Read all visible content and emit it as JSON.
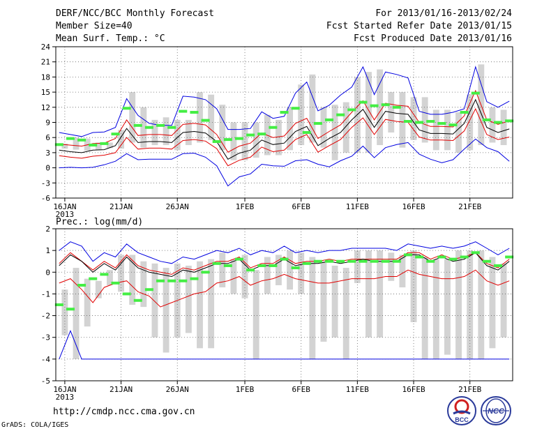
{
  "header": {
    "title": "DERF/NCC/BCC Monthly Forecast",
    "member_size": "Member Size=40",
    "variable": "Mean Surf. Temp.: °C",
    "for_range": "For 2013/01/16-2013/02/24",
    "fcst_started": "Fcst Started Refer Date 2013/01/15",
    "fcst_produced": "Fcst Produced Date 2013/01/16"
  },
  "footer": {
    "url": "http://cmdp.ncc.cma.gov.cn",
    "grads": "GrADS: COLA/IGES",
    "logo1_text": "BCC",
    "logo2_text": "NCC"
  },
  "colors": {
    "bar": "#d3d3d3",
    "ensemble_mean": "#000000",
    "spread": "#e00000",
    "extremes": "#0000e0",
    "observed": "#44ee44",
    "grid": "#666666"
  },
  "chart_data": [
    {
      "type": "line",
      "title": "Mean Surf. Temp.: °C",
      "ylim": [
        -6,
        24
      ],
      "yticks": [
        -6,
        -3,
        0,
        3,
        6,
        9,
        12,
        15,
        18,
        21,
        24
      ],
      "xticks": [
        {
          "day": 1,
          "label": "16JAN",
          "sub": "2013"
        },
        {
          "day": 6,
          "label": "21JAN",
          "sub": ""
        },
        {
          "day": 11,
          "label": "26JAN",
          "sub": ""
        },
        {
          "day": 17,
          "label": "1FEB",
          "sub": ""
        },
        {
          "day": 22,
          "label": "6FEB",
          "sub": ""
        },
        {
          "day": 27,
          "label": "11FEB",
          "sub": ""
        },
        {
          "day": 32,
          "label": "16FEB",
          "sub": ""
        },
        {
          "day": 37,
          "label": "21FEB",
          "sub": ""
        }
      ],
      "days": 40,
      "bars_low": [
        3.8,
        3.6,
        3.4,
        3.5,
        3.9,
        3.8,
        5.0,
        4.0,
        4.5,
        4.5,
        3.5,
        4.5,
        5.0,
        5.5,
        3.5,
        1.5,
        1.5,
        2.0,
        2.5,
        2.5,
        3.5,
        4.5,
        5.0,
        4.0,
        1.5,
        3.0,
        3.0,
        3.0,
        4.5,
        7.0,
        4.0,
        5.5,
        5.0,
        3.5,
        3.5,
        3.0,
        3.5,
        4.5,
        5.0,
        4.5
      ],
      "bars_high": [
        4.8,
        6.0,
        5.8,
        5.0,
        5.0,
        7.5,
        15.0,
        12.0,
        9.5,
        10.0,
        9.5,
        9.5,
        15.0,
        14.5,
        12.5,
        9.0,
        9.0,
        9.0,
        10.5,
        9.5,
        12.0,
        16.5,
        18.5,
        12.0,
        12.5,
        13.0,
        18.0,
        19.0,
        19.5,
        15.0,
        15.0,
        14.0,
        14.0,
        11.5,
        11.5,
        11.0,
        14.5,
        20.5,
        12.0,
        11.5
      ],
      "mean": [
        3.5,
        3.2,
        3.0,
        3.5,
        3.6,
        4.4,
        7.8,
        5.0,
        5.2,
        5.2,
        5.0,
        7.0,
        7.2,
        6.9,
        5.2,
        1.7,
        2.9,
        3.5,
        5.5,
        4.6,
        4.9,
        7.2,
        8.2,
        4.4,
        5.8,
        7.0,
        9.5,
        11.6,
        8.0,
        11.2,
        10.8,
        10.6,
        7.5,
        6.8,
        6.8,
        6.7,
        8.8,
        13.5,
        8.0,
        7.0,
        7.7
      ],
      "upper": [
        4.7,
        4.5,
        4.3,
        4.8,
        4.9,
        5.8,
        9.5,
        6.4,
        6.6,
        6.6,
        6.4,
        8.6,
        8.8,
        8.5,
        6.6,
        3.1,
        4.3,
        4.9,
        6.9,
        6.0,
        6.3,
        8.8,
        9.8,
        5.8,
        7.2,
        8.5,
        11.0,
        13.3,
        9.5,
        12.8,
        12.4,
        12.2,
        9.0,
        8.2,
        8.2,
        8.1,
        10.3,
        15.3,
        9.5,
        8.6,
        9.3
      ],
      "lower": [
        2.4,
        2.1,
        1.9,
        2.3,
        2.5,
        3.0,
        6.0,
        3.7,
        3.9,
        3.9,
        3.7,
        5.4,
        5.6,
        5.3,
        3.8,
        0.4,
        1.5,
        2.1,
        4.1,
        3.2,
        3.5,
        5.6,
        6.6,
        3.1,
        4.4,
        5.6,
        8.0,
        9.9,
        6.6,
        9.6,
        9.2,
        9.0,
        6.1,
        5.5,
        5.5,
        5.4,
        7.3,
        11.7,
        6.6,
        5.6,
        6.1
      ],
      "max": [
        7.0,
        6.6,
        6.2,
        7.0,
        7.1,
        8.0,
        13.7,
        10.4,
        8.8,
        8.4,
        8.4,
        14.2,
        14.0,
        13.5,
        11.7,
        7.6,
        7.6,
        7.8,
        11.1,
        9.8,
        10.2,
        14.8,
        17.0,
        11.3,
        12.4,
        14.4,
        16.0,
        20.0,
        14.5,
        19.0,
        18.5,
        17.8,
        11.2,
        10.6,
        10.6,
        11.0,
        11.7,
        20.0,
        13.1,
        12.0,
        13.2
      ],
      "min": [
        0.0,
        0.1,
        0.0,
        0.1,
        0.6,
        1.3,
        2.8,
        1.6,
        1.7,
        1.7,
        1.7,
        2.8,
        2.9,
        2.1,
        0.4,
        -3.6,
        -1.8,
        -1.2,
        0.7,
        0.4,
        0.3,
        1.4,
        1.6,
        0.7,
        0.2,
        1.4,
        2.3,
        4.3,
        2.0,
        4.0,
        4.6,
        5.0,
        2.7,
        1.7,
        1.0,
        1.6,
        3.7,
        5.7,
        4.0,
        3.2,
        1.3
      ],
      "observed": [
        4.6,
        5.8,
        5.5,
        4.5,
        4.8,
        6.7,
        11.8,
        8.4,
        8.0,
        8.4,
        8.0,
        11.2,
        11.0,
        9.4,
        5.2,
        5.6,
        5.8,
        6.5,
        6.7,
        8.0,
        11.0,
        11.8,
        7.0,
        8.8,
        9.5,
        10.5,
        11.5,
        13.0,
        12.3,
        12.5,
        12.0,
        9.2,
        9.0,
        9.2,
        8.8,
        8.5,
        11.0,
        14.8,
        9.5,
        9.0,
        9.3
      ]
    },
    {
      "type": "line",
      "title": "Prec.: log(mm/d)",
      "ylim": [
        -5,
        2
      ],
      "yticks": [
        -5,
        -4,
        -3,
        -2,
        -1,
        0,
        1,
        2
      ],
      "xticks": [
        {
          "day": 1,
          "label": "16JAN",
          "sub": "2013"
        },
        {
          "day": 6,
          "label": "21JAN",
          "sub": ""
        },
        {
          "day": 11,
          "label": "26JAN",
          "sub": ""
        },
        {
          "day": 17,
          "label": "1FEB",
          "sub": ""
        },
        {
          "day": 22,
          "label": "6FEB",
          "sub": ""
        },
        {
          "day": 27,
          "label": "11FEB",
          "sub": ""
        },
        {
          "day": 32,
          "label": "16FEB",
          "sub": ""
        },
        {
          "day": 37,
          "label": "21FEB",
          "sub": ""
        }
      ],
      "days": 40,
      "bars_low": [
        -2.9,
        -4.0,
        -2.5,
        -1.2,
        -0.6,
        -0.9,
        -1.5,
        -1.6,
        -3.0,
        -3.7,
        -3.0,
        -2.8,
        -3.5,
        -3.5,
        -0.7,
        -1.0,
        -1.2,
        -4.0,
        -1.0,
        -0.6,
        -0.8,
        -1.0,
        -4.0,
        -3.2,
        -3.0,
        -4.0,
        -0.5,
        -3.0,
        -3.0,
        -0.4,
        -0.7,
        -2.3,
        -4.0,
        -4.0,
        -3.8,
        -4.0,
        -4.0,
        -4.0,
        -3.5,
        -3.0
      ],
      "bars_high": [
        -0.8,
        0.2,
        -0.3,
        -0.4,
        0.1,
        0.8,
        0.8,
        0.5,
        0.4,
        0.2,
        0.4,
        0.3,
        0.5,
        0.6,
        0.9,
        0.6,
        0.8,
        0.1,
        0.7,
        0.8,
        1.0,
        0.9,
        0.7,
        0.5,
        0.3,
        0.2,
        1.0,
        1.0,
        1.0,
        0.9,
        0.8,
        1.0,
        0.7,
        0.6,
        0.6,
        1.0,
        1.0,
        1.0,
        0.7,
        0.4
      ],
      "mean": [
        0.3,
        0.8,
        0.5,
        0.0,
        0.4,
        0.1,
        0.7,
        0.2,
        0.0,
        -0.1,
        -0.2,
        0.1,
        0.0,
        0.2,
        0.4,
        0.4,
        0.6,
        0.1,
        0.3,
        0.3,
        0.6,
        0.3,
        0.4,
        0.4,
        0.5,
        0.4,
        0.5,
        0.6,
        0.5,
        0.5,
        0.5,
        0.8,
        0.8,
        0.5,
        0.7,
        0.5,
        0.6,
        0.9,
        0.3,
        0.1,
        0.5
      ],
      "upper": [
        0.4,
        0.9,
        0.5,
        0.1,
        0.5,
        0.2,
        0.8,
        0.3,
        0.1,
        0.0,
        -0.1,
        0.2,
        0.1,
        0.3,
        0.5,
        0.5,
        0.7,
        0.2,
        0.4,
        0.4,
        0.7,
        0.4,
        0.5,
        0.5,
        0.6,
        0.5,
        0.6,
        0.6,
        0.6,
        0.6,
        0.6,
        0.9,
        0.9,
        0.6,
        0.8,
        0.6,
        0.7,
        0.9,
        0.4,
        0.2,
        0.6
      ],
      "lower": [
        -0.5,
        -0.3,
        -0.8,
        -1.4,
        -0.7,
        -0.5,
        -0.4,
        -0.9,
        -1.1,
        -1.6,
        -1.4,
        -1.2,
        -1.0,
        -0.9,
        -0.5,
        -0.4,
        -0.2,
        -0.6,
        -0.4,
        -0.3,
        -0.1,
        -0.3,
        -0.4,
        -0.5,
        -0.5,
        -0.4,
        -0.3,
        -0.3,
        -0.3,
        -0.2,
        -0.2,
        0.1,
        -0.1,
        -0.2,
        -0.3,
        -0.3,
        -0.2,
        0.1,
        -0.4,
        -0.6,
        -0.4
      ],
      "max": [
        1.0,
        1.4,
        1.2,
        0.5,
        0.9,
        0.7,
        1.3,
        0.9,
        0.7,
        0.5,
        0.4,
        0.7,
        0.6,
        0.8,
        1.0,
        0.9,
        1.1,
        0.8,
        1.0,
        0.9,
        1.2,
        0.9,
        1.0,
        0.9,
        1.0,
        1.0,
        1.1,
        1.1,
        1.1,
        1.1,
        1.0,
        1.3,
        1.2,
        1.1,
        1.2,
        1.1,
        1.2,
        1.4,
        1.1,
        0.8,
        1.1
      ],
      "min": [
        -4.0,
        -2.7,
        -4.0,
        -4.0,
        -4.0,
        -4.0,
        -4.0,
        -4.0,
        -4.0,
        -4.0,
        -4.0,
        -4.0,
        -4.0,
        -4.0,
        -4.0,
        -4.0,
        -4.0,
        -4.0,
        -4.0,
        -4.0,
        -4.0,
        -4.0,
        -4.0,
        -4.0,
        -4.0,
        -4.0,
        -4.0,
        -4.0,
        -4.0,
        -4.0,
        -4.0,
        -4.0,
        -4.0,
        -4.0,
        -4.0,
        -4.0,
        -4.0,
        -4.0,
        -4.0,
        -4.0,
        -4.0
      ],
      "observed": [
        -1.5,
        -1.7,
        -0.6,
        -0.3,
        -0.1,
        -0.5,
        -1.0,
        -1.3,
        -0.8,
        -0.4,
        -0.4,
        -0.4,
        -0.3,
        0.0,
        0.4,
        0.3,
        0.6,
        0.1,
        0.3,
        0.3,
        0.6,
        0.2,
        0.4,
        0.5,
        0.5,
        0.5,
        0.5,
        0.5,
        0.5,
        0.5,
        0.5,
        0.8,
        0.7,
        0.5,
        0.7,
        0.6,
        0.7,
        0.9,
        0.5,
        0.3,
        0.7
      ]
    }
  ]
}
